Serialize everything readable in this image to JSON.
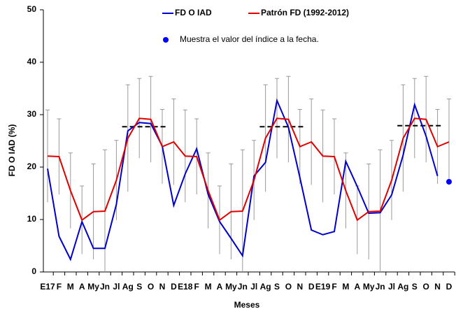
{
  "chart_data": {
    "type": "line",
    "xlabel": "Meses",
    "ylabel": "FD O IAD (%)",
    "categories": [
      "E17",
      "F",
      "M",
      "A",
      "My",
      "Jn",
      "Jl",
      "Ag",
      "S",
      "O",
      "N",
      "D",
      "E18",
      "F",
      "M",
      "A",
      "My",
      "Jn",
      "Jl",
      "Ag",
      "S",
      "O",
      "N",
      "D",
      "E19",
      "F",
      "M",
      "A",
      "My",
      "Jn",
      "Jl",
      "Ag",
      "S",
      "O",
      "N",
      "D"
    ],
    "series": [
      {
        "name": "FD O IAD",
        "color": "#0000cc",
        "values": [
          19.7,
          6.8,
          2.4,
          9.6,
          4.5,
          4.5,
          12.9,
          26.9,
          28.5,
          28.3,
          24,
          12.7,
          18.7,
          23.5,
          14.8,
          9.6,
          6.4,
          3.1,
          18.3,
          20.9,
          32.7,
          27.6,
          18,
          8,
          7.1,
          7.7,
          21.1,
          16.3,
          11.2,
          11.3,
          14.7,
          22.3,
          31.9,
          25.9,
          18.3,
          null
        ]
      },
      {
        "name": "Patrón FD (1992-2012)",
        "color": "#e00000",
        "values": [
          22.1,
          22,
          15.5,
          9.9,
          11.5,
          11.6,
          17.5,
          25.5,
          29.3,
          29.1,
          23.9,
          24.8,
          22.1,
          22,
          15.5,
          9.9,
          11.5,
          11.6,
          17.5,
          25.5,
          29.3,
          29.1,
          23.9,
          24.8,
          22.1,
          22,
          15.5,
          9.9,
          11.5,
          11.6,
          17.5,
          25.5,
          29.3,
          29.1,
          23.9,
          24.8
        ],
        "errors": [
          8.8,
          7.2,
          7.2,
          6.5,
          9.1,
          11.7,
          7.6,
          10.2,
          7.6,
          8.2,
          7.1,
          8.2,
          8.8,
          7.2,
          7.2,
          6.5,
          9.1,
          11.7,
          7.6,
          10.2,
          7.6,
          8.2,
          7.1,
          8.2,
          8.8,
          7.2,
          7.2,
          6.5,
          9.1,
          11.7,
          7.6,
          10.2,
          7.6,
          8.2,
          7.1,
          8.2
        ],
        "error_color": "#999999"
      },
      {
        "name": "Muestra el valor del índice a la fecha.",
        "color": "#0000ff",
        "marker": "dot",
        "values": [
          null,
          null,
          null,
          null,
          null,
          null,
          null,
          null,
          null,
          null,
          null,
          null,
          null,
          null,
          null,
          null,
          null,
          null,
          null,
          null,
          null,
          null,
          null,
          null,
          null,
          null,
          null,
          null,
          null,
          null,
          null,
          null,
          null,
          null,
          null,
          17.2
        ]
      }
    ],
    "reference_line": {
      "color": "#000000",
      "values": [
        null,
        null,
        null,
        null,
        null,
        null,
        null,
        27.7,
        27.7,
        27.7,
        27.7,
        null,
        null,
        null,
        null,
        null,
        null,
        null,
        null,
        27.7,
        27.7,
        27.7,
        27.7,
        null,
        null,
        null,
        null,
        null,
        null,
        null,
        null,
        27.9,
        27.9,
        27.9,
        27.9,
        null
      ]
    },
    "ylim": [
      0,
      50
    ],
    "yticks": [
      0,
      10,
      20,
      30,
      40,
      50
    ],
    "grid": false
  }
}
